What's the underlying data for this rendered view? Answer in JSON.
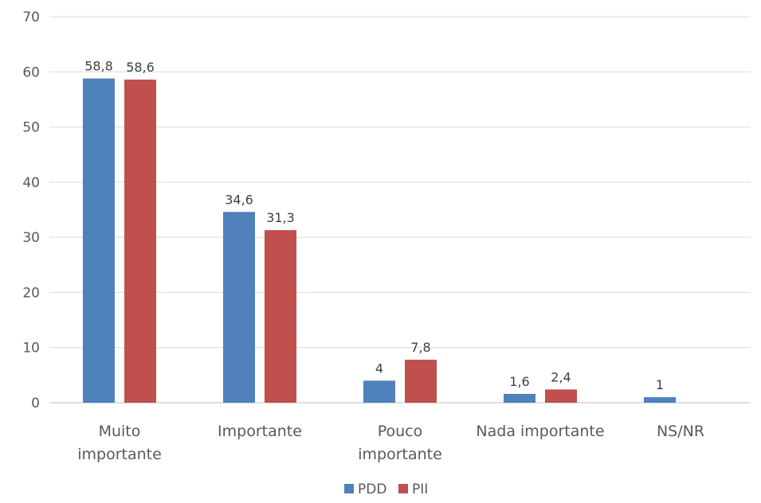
{
  "chart_data": {
    "type": "bar",
    "title": "",
    "xlabel": "",
    "ylabel": "",
    "ylim": [
      0,
      70
    ],
    "yticks": [
      0,
      10,
      20,
      30,
      40,
      50,
      60,
      70
    ],
    "grid": true,
    "legend_position": "bottom",
    "categories": [
      [
        "Muito",
        "importante"
      ],
      [
        "Importante"
      ],
      [
        "Pouco",
        "importante"
      ],
      [
        "Nada importante"
      ],
      [
        "NS/NR"
      ]
    ],
    "series": [
      {
        "name": "PDD",
        "color": "#4f81bd",
        "values": [
          58.8,
          34.6,
          4,
          1.6,
          1
        ],
        "labels": [
          "58,8",
          "34,6",
          "4",
          "1,6",
          "1"
        ]
      },
      {
        "name": "PII",
        "color": "#c0504d",
        "values": [
          58.6,
          31.3,
          7.8,
          2.4,
          null
        ],
        "labels": [
          "58,6",
          "31,3",
          "7,8",
          "2,4",
          ""
        ]
      }
    ]
  }
}
